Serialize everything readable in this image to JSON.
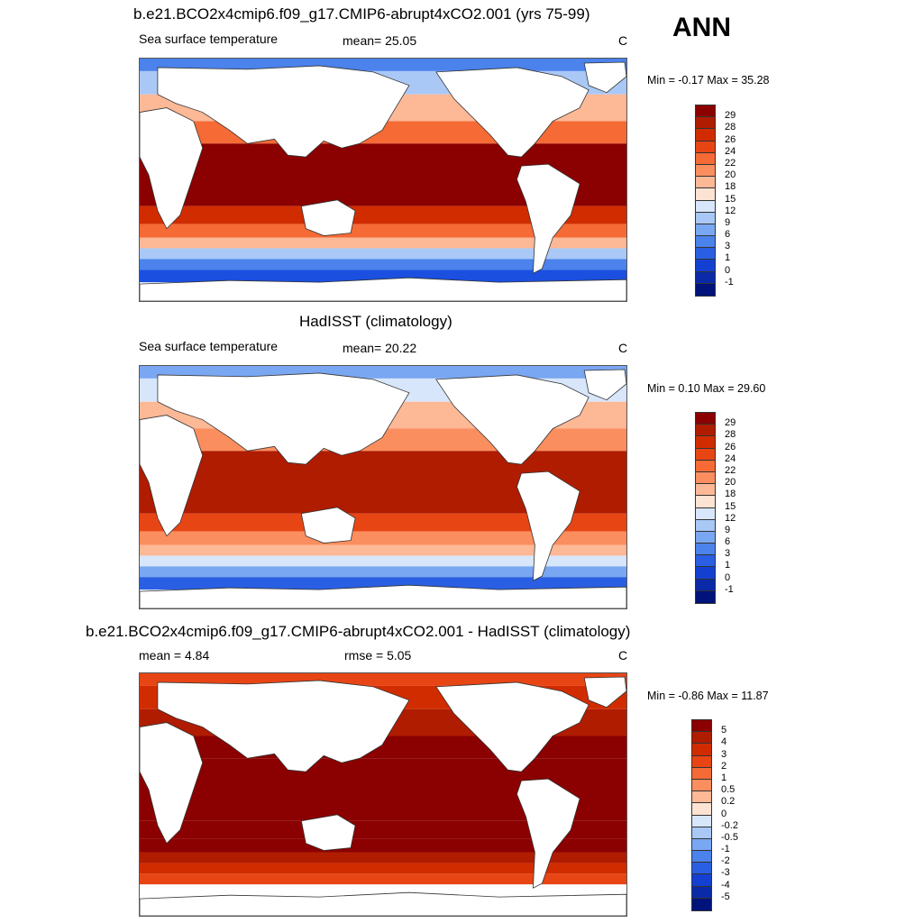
{
  "season_label": "ANN",
  "panels": [
    {
      "title": "b.e21.BCO2x4cmip6.f09_g17.CMIP6-abrupt4xCO2.001 (yrs 75-99)",
      "left_label": "Sea surface temperature",
      "center_label": "mean=  25.05",
      "units": "C",
      "minmax": "Min =  -0.17 Max =  35.28",
      "colorbar": {
        "colors": [
          "#8b0000",
          "#b01c00",
          "#d12c00",
          "#e84515",
          "#f56a35",
          "#fb8e5e",
          "#fdb896",
          "#fde3d2",
          "#d7e6fb",
          "#a9c8f6",
          "#7aa7f2",
          "#4b82ec",
          "#2a5fe3",
          "#1440d2",
          "#0a2aa8",
          "#00137a"
        ],
        "labels": [
          "29",
          "28",
          "26",
          "24",
          "22",
          "20",
          "18",
          "15",
          "12",
          "9",
          "6",
          "3",
          "1",
          "0",
          "-1"
        ]
      },
      "field_colors": {
        "polar": "#1a4fe0",
        "cold": "#4b82ec",
        "cool": "#a9c8f6",
        "mild": "#fdb896",
        "warm": "#f56a35",
        "hot": "#d12c00",
        "veryhot": "#8b0000"
      }
    },
    {
      "title": "HadISST (climatology)",
      "left_label": "Sea surface temperature",
      "center_label": "mean=  20.22",
      "units": "C",
      "minmax": "Min =   0.10 Max =  29.60",
      "colorbar": {
        "colors": [
          "#8b0000",
          "#b01c00",
          "#d12c00",
          "#e84515",
          "#f56a35",
          "#fb8e5e",
          "#fdb896",
          "#fde3d2",
          "#d7e6fb",
          "#a9c8f6",
          "#7aa7f2",
          "#4b82ec",
          "#2a5fe3",
          "#1440d2",
          "#0a2aa8",
          "#00137a"
        ],
        "labels": [
          "29",
          "28",
          "26",
          "24",
          "22",
          "20",
          "18",
          "15",
          "12",
          "9",
          "6",
          "3",
          "1",
          "0",
          "-1"
        ]
      },
      "field_colors": {
        "polar": "#2a5fe3",
        "cold": "#7aa7f2",
        "cool": "#d7e6fb",
        "mild": "#fdb896",
        "warm": "#fb8e5e",
        "hot": "#e84515",
        "veryhot": "#b01c00"
      }
    },
    {
      "title": "b.e21.BCO2x4cmip6.f09_g17.CMIP6-abrupt4xCO2.001 - HadISST (climatology)",
      "left_label": "mean =   4.84",
      "center_label": "rmse =   5.05",
      "units": "C",
      "minmax": "Min =  -0.86 Max =  11.87",
      "colorbar": {
        "colors": [
          "#8b0000",
          "#b01c00",
          "#d12c00",
          "#e84515",
          "#f56a35",
          "#fb8e5e",
          "#fdb896",
          "#fde3d2",
          "#d7e6fb",
          "#a9c8f6",
          "#7aa7f2",
          "#4b82ec",
          "#2a5fe3",
          "#1440d2",
          "#0a2aa8",
          "#00137a"
        ],
        "labels": [
          "5",
          "4",
          "3",
          "2",
          "1",
          "0.5",
          "0.2",
          "0",
          "-0.2",
          "-0.5",
          "-1",
          "-2",
          "-3",
          "-4",
          "-5"
        ]
      },
      "field_colors": {
        "polar": "#ffffff",
        "cold": "#e84515",
        "cool": "#d12c00",
        "mild": "#b01c00",
        "warm": "#8b0000",
        "hot": "#8b0000",
        "veryhot": "#8b0000"
      }
    }
  ]
}
